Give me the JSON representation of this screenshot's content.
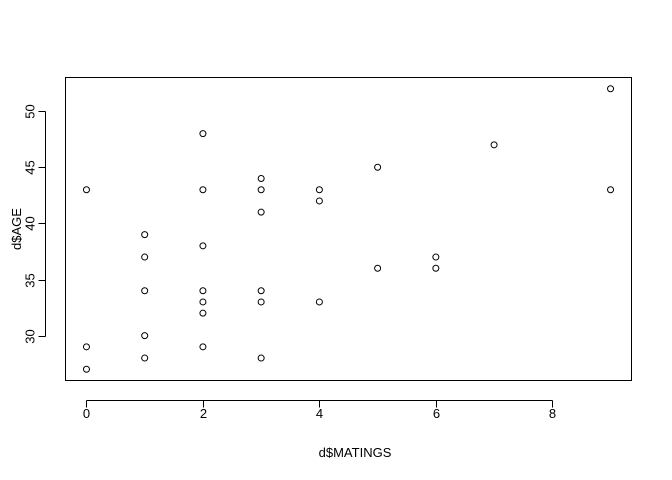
{
  "chart_data": {
    "type": "scatter",
    "title": "",
    "xlabel": "d$MATINGS",
    "ylabel": "d$AGE",
    "xlim": [
      -0.36,
      9.36
    ],
    "ylim": [
      26.0,
      53.0
    ],
    "x_ticks": [
      0,
      2,
      4,
      6,
      8
    ],
    "y_ticks": [
      30,
      35,
      40,
      45,
      50
    ],
    "x_tick_labels": [
      "0",
      "2",
      "4",
      "6",
      "8"
    ],
    "y_tick_labels": [
      "30",
      "35",
      "40",
      "45",
      "50"
    ],
    "grid": false,
    "legend": "none",
    "marker": "open-circle",
    "point_color": "#000000",
    "points": [
      {
        "x": 0,
        "y": 27
      },
      {
        "x": 0,
        "y": 29
      },
      {
        "x": 0,
        "y": 43
      },
      {
        "x": 1,
        "y": 28
      },
      {
        "x": 1,
        "y": 30
      },
      {
        "x": 1,
        "y": 34
      },
      {
        "x": 1,
        "y": 37
      },
      {
        "x": 1,
        "y": 39
      },
      {
        "x": 2,
        "y": 29
      },
      {
        "x": 2,
        "y": 32
      },
      {
        "x": 2,
        "y": 33
      },
      {
        "x": 2,
        "y": 34
      },
      {
        "x": 2,
        "y": 38
      },
      {
        "x": 2,
        "y": 43
      },
      {
        "x": 2,
        "y": 48
      },
      {
        "x": 3,
        "y": 28
      },
      {
        "x": 3,
        "y": 33
      },
      {
        "x": 3,
        "y": 34
      },
      {
        "x": 3,
        "y": 41
      },
      {
        "x": 3,
        "y": 43
      },
      {
        "x": 3,
        "y": 44
      },
      {
        "x": 4,
        "y": 33
      },
      {
        "x": 4,
        "y": 42
      },
      {
        "x": 4,
        "y": 43
      },
      {
        "x": 5,
        "y": 36
      },
      {
        "x": 5,
        "y": 45
      },
      {
        "x": 6,
        "y": 36
      },
      {
        "x": 6,
        "y": 37
      },
      {
        "x": 7,
        "y": 47
      },
      {
        "x": 9,
        "y": 43
      },
      {
        "x": 9,
        "y": 52
      }
    ]
  }
}
